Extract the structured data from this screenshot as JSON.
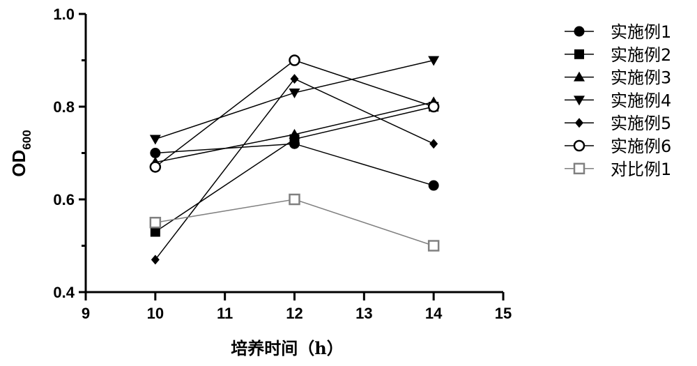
{
  "chart_data": {
    "type": "line",
    "xlabel": "培养时间（h）",
    "ylabel": "OD",
    "ylabel_sub": "600",
    "xlim": [
      9,
      15
    ],
    "ylim": [
      0.4,
      1.0
    ],
    "xticks": [
      "9",
      "10",
      "11",
      "12",
      "13",
      "14",
      "15"
    ],
    "yticks": [
      "0.4",
      "0.6",
      "0.8",
      "1.0"
    ],
    "x": [
      10,
      12,
      14
    ],
    "legend_position": "right",
    "series": [
      {
        "name": "实施例1",
        "marker": "circle-filled",
        "color": "#000000",
        "values": [
          0.7,
          0.72,
          0.63
        ]
      },
      {
        "name": "实施例2",
        "marker": "square-filled",
        "color": "#000000",
        "values": [
          0.53,
          0.73,
          0.8
        ]
      },
      {
        "name": "实施例3",
        "marker": "triangle-up-filled",
        "color": "#000000",
        "values": [
          0.68,
          0.74,
          0.81
        ]
      },
      {
        "name": "实施例4",
        "marker": "triangle-down-filled",
        "color": "#000000",
        "values": [
          0.73,
          0.83,
          0.9
        ]
      },
      {
        "name": "实施例5",
        "marker": "diamond-filled",
        "color": "#000000",
        "values": [
          0.47,
          0.86,
          0.72
        ]
      },
      {
        "name": "实施例6",
        "marker": "circle-open",
        "color": "#000000",
        "values": [
          0.67,
          0.9,
          0.8
        ]
      },
      {
        "name": "对比例1",
        "marker": "square-open",
        "color": "#808080",
        "values": [
          0.55,
          0.6,
          0.5
        ]
      }
    ]
  }
}
